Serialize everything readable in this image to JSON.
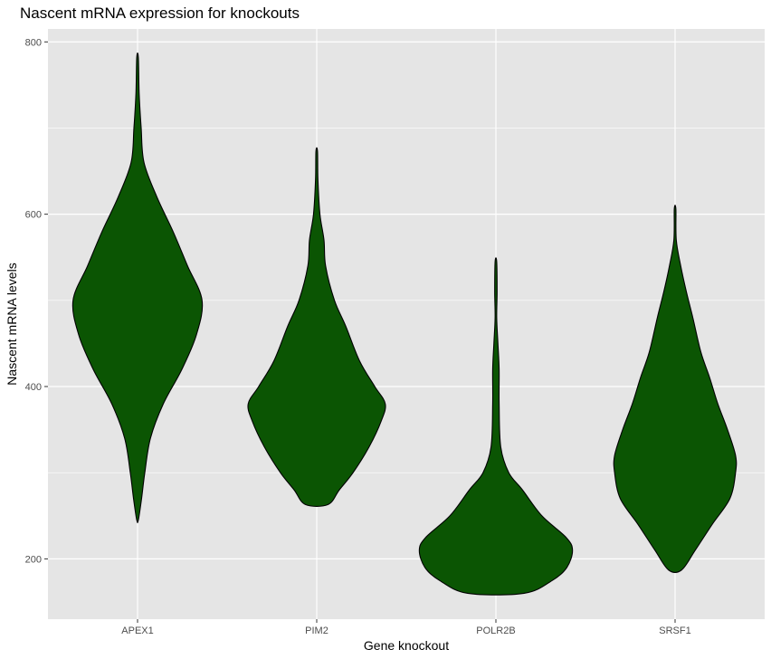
{
  "chart_data": {
    "type": "violin",
    "title": "Nascent mRNA expression for knockouts",
    "xlabel": "Gene knockout",
    "ylabel": "Nascent mRNA levels",
    "categories": [
      "APEX1",
      "PIM2",
      "POLR2B",
      "SRSF1"
    ],
    "ylim": [
      130,
      815
    ],
    "yticks": [
      200,
      400,
      600,
      800
    ],
    "grid": true,
    "fill_color": "#0b5503",
    "outline_color": "#000000",
    "panel_color": "#e5e5e5",
    "grid_color": "#ffffff",
    "violins": [
      {
        "name": "APEX1",
        "profile": [
          [
            245,
            0.01
          ],
          [
            270,
            0.05
          ],
          [
            300,
            0.09
          ],
          [
            340,
            0.16
          ],
          [
            380,
            0.32
          ],
          [
            420,
            0.55
          ],
          [
            460,
            0.73
          ],
          [
            500,
            0.8
          ],
          [
            540,
            0.62
          ],
          [
            580,
            0.44
          ],
          [
            620,
            0.24
          ],
          [
            660,
            0.08
          ],
          [
            700,
            0.045
          ],
          [
            740,
            0.02
          ],
          [
            782,
            0.01
          ]
        ]
      },
      {
        "name": "PIM2",
        "profile": [
          [
            263,
            0.14
          ],
          [
            280,
            0.28
          ],
          [
            300,
            0.45
          ],
          [
            330,
            0.65
          ],
          [
            360,
            0.8
          ],
          [
            380,
            0.85
          ],
          [
            400,
            0.72
          ],
          [
            430,
            0.53
          ],
          [
            470,
            0.36
          ],
          [
            500,
            0.22
          ],
          [
            540,
            0.11
          ],
          [
            570,
            0.09
          ],
          [
            600,
            0.04
          ],
          [
            640,
            0.015
          ],
          [
            673,
            0.01
          ]
        ]
      },
      {
        "name": "POLR2B",
        "profile": [
          [
            160,
            0.35
          ],
          [
            175,
            0.7
          ],
          [
            190,
            0.88
          ],
          [
            210,
            0.95
          ],
          [
            225,
            0.87
          ],
          [
            250,
            0.57
          ],
          [
            280,
            0.33
          ],
          [
            300,
            0.16
          ],
          [
            330,
            0.06
          ],
          [
            380,
            0.04
          ],
          [
            420,
            0.04
          ],
          [
            450,
            0.025
          ],
          [
            480,
            0.01
          ],
          [
            510,
            0.015
          ],
          [
            545,
            0.01
          ]
        ]
      },
      {
        "name": "SRSF1",
        "profile": [
          [
            187,
            0.08
          ],
          [
            210,
            0.25
          ],
          [
            240,
            0.46
          ],
          [
            270,
            0.68
          ],
          [
            300,
            0.75
          ],
          [
            320,
            0.75
          ],
          [
            350,
            0.65
          ],
          [
            380,
            0.53
          ],
          [
            410,
            0.43
          ],
          [
            440,
            0.32
          ],
          [
            480,
            0.22
          ],
          [
            510,
            0.14
          ],
          [
            540,
            0.07
          ],
          [
            570,
            0.015
          ],
          [
            606,
            0.01
          ]
        ]
      }
    ]
  }
}
